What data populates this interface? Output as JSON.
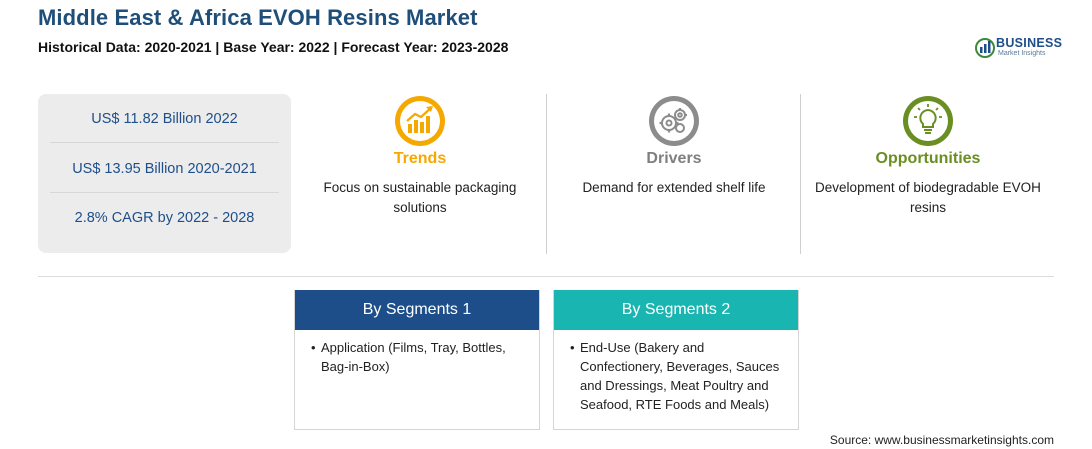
{
  "header": {
    "title": "Middle East & Africa EVOH Resins Market",
    "subtitle": "Historical Data: 2020-2021 | Base Year: 2022 | Forecast Year: 2023-2028"
  },
  "logo": {
    "word": "BUSINESS",
    "sub": "Market Insights"
  },
  "stats": [
    "US$ 11.82 Billion 2022",
    "US$ 13.95 Billion 2020-2021",
    "2.8% CAGR by 2022 - 2028"
  ],
  "features": {
    "trends": {
      "label": "Trends",
      "text": "Focus on sustainable packaging solutions",
      "color": "#f5a800",
      "icon": "chart-up-icon"
    },
    "drivers": {
      "label": "Drivers",
      "text": "Demand for extended shelf life",
      "color": "#7f7f7f",
      "icon": "gears-icon"
    },
    "opportunities": {
      "label": "Opportunities",
      "text": "Development of biodegradable EVOH resins",
      "color": "#6b8e23",
      "icon": "lightbulb-icon"
    }
  },
  "segments": [
    {
      "title": "By Segments 1",
      "bullet": "•",
      "text": "Application (Films, Tray, Bottles, Bag-in-Box)",
      "color": "#1d4e8a"
    },
    {
      "title": "By Segments 2",
      "bullet": "•",
      "text": "End-Use (Bakery and Confectionery, Beverages, Sauces and Dressings, Meat Poultry and Seafood, RTE Foods and Meals)",
      "color": "#18b5b1"
    }
  ],
  "source": "Source: www.businessmarketinsights.com"
}
